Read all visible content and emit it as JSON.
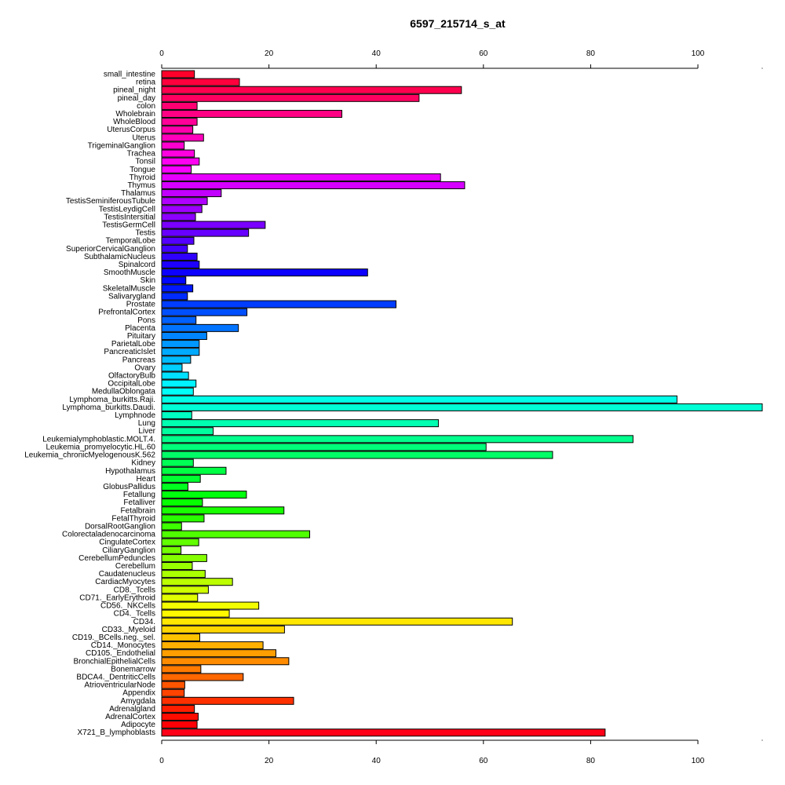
{
  "chart_data": {
    "type": "bar",
    "orientation": "horizontal",
    "title": "6597_215714_s_at",
    "xlabel": "",
    "ylabel": "",
    "xlim": [
      0,
      112
    ],
    "xticks": [
      0,
      20,
      40,
      60,
      80,
      100
    ],
    "tick_labels": [
      "0",
      "20",
      "40",
      "60",
      "80",
      "100"
    ],
    "axis_positions": [
      "top",
      "bottom"
    ],
    "grid": false,
    "categories": [
      "small_intestine",
      "retina",
      "pineal_night",
      "pineal_day",
      "colon",
      "Wholebrain",
      "WholeBlood",
      "UterusCorpus",
      "Uterus",
      "TrigeminalGanglion",
      "Trachea",
      "Tonsil",
      "Tongue",
      "Thyroid",
      "Thymus",
      "Thalamus",
      "TestisSeminiferousTubule",
      "TestisLeydigCell",
      "TestisIntersitial",
      "TestisGermCell",
      "Testis",
      "TemporalLobe",
      "SuperiorCervicalGanglion",
      "SubthalamicNucleus",
      "Spinalcord",
      "SmoothMuscle",
      "Skin",
      "SkeletalMuscle",
      "Salivarygland",
      "Prostate",
      "PrefrontalCortex",
      "Pons",
      "Placenta",
      "Pituitary",
      "ParietalLobe",
      "PancreaticIslet",
      "Pancreas",
      "Ovary",
      "OlfactoryBulb",
      "OccipitalLobe",
      "MedullaOblongata",
      "Lymphoma_burkitts.Raji.",
      "Lymphoma_burkitts.Daudi.",
      "Lymphnode",
      "Lung",
      "Liver",
      "Leukemialymphoblastic.MOLT.4.",
      "Leukemia_promyelocytic.HL.60",
      "Leukemia_chronicMyelogenousK.562",
      "Kidney",
      "Hypothalamus",
      "Heart",
      "GlobusPallidus",
      "Fetallung",
      "Fetalliver",
      "Fetalbrain",
      "FetalThyroid",
      "DorsalRootGanglion",
      "Colorectaladenocarcinoma",
      "CingulateCortex",
      "CiliaryGanglion",
      "CerebellumPeduncles",
      "Cerebellum",
      "Caudatenucleus",
      "CardiacMyocytes",
      "CD8._Tcells",
      "CD71._EarlyErythroid",
      "CD56._NKCells",
      "CD4._Tcells",
      "CD34.",
      "CD33._Myeloid",
      "CD19._BCells.neg._sel.",
      "CD14._Monocytes",
      "CD105._Endothelial",
      "BronchialEpithelialCells",
      "Bonemarrow",
      "BDCA4._DentriticCells",
      "AtrioventricularNode",
      "Appendix",
      "Amygdala",
      "Adrenalgland",
      "AdrenalCortex",
      "Adipocyte",
      "X721_B_lymphoblasts"
    ],
    "values": [
      6.1,
      14.5,
      55.9,
      48.0,
      6.6,
      33.6,
      6.6,
      5.8,
      7.8,
      4.2,
      6.1,
      7.0,
      5.5,
      52.0,
      56.5,
      11.1,
      8.5,
      7.5,
      6.3,
      19.3,
      16.2,
      6.0,
      4.8,
      6.6,
      7.0,
      38.4,
      4.5,
      5.8,
      4.8,
      43.7,
      15.9,
      6.4,
      14.3,
      8.4,
      7.0,
      7.0,
      5.4,
      3.8,
      5.0,
      6.4,
      5.9,
      96.1,
      112.0,
      5.6,
      51.6,
      9.6,
      87.9,
      60.5,
      72.9,
      5.9,
      12.0,
      7.2,
      4.9,
      15.8,
      7.6,
      22.8,
      7.9,
      3.7,
      27.6,
      6.9,
      3.6,
      8.4,
      5.7,
      8.1,
      13.2,
      8.7,
      6.7,
      18.1,
      12.6,
      65.4,
      22.9,
      7.1,
      18.9,
      21.3,
      23.7,
      7.3,
      15.2,
      4.3,
      4.2,
      24.6,
      6.1,
      6.8,
      6.6,
      82.7
    ]
  }
}
